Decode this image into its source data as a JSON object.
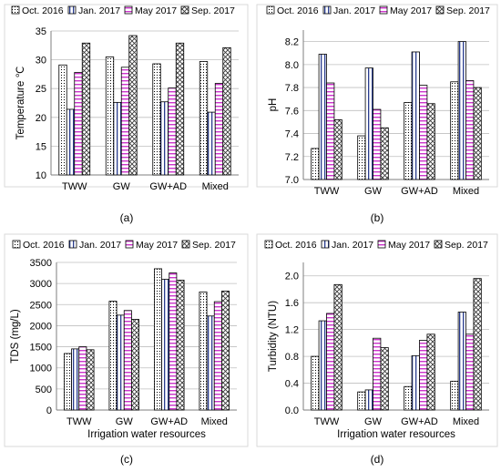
{
  "figure": {
    "panel_labels": [
      "(a)",
      "(b)",
      "(c)",
      "(d)"
    ]
  },
  "colors": {
    "panel_border": "#d9d9d9",
    "bar_stroke": "#000000",
    "grid": "#bfbfbf",
    "axis": "#7f7f7f"
  },
  "legend_entries": [
    "Oct. 2016",
    "Jan. 2017",
    "May 2017",
    "Sep. 2017"
  ],
  "chart_data": [
    {
      "type": "bar",
      "categories": [
        "TWW",
        "GW",
        "GW+AD",
        "Mixed"
      ],
      "series": [
        {
          "name": "Oct. 2016",
          "values": [
            29.1,
            30.5,
            29.3,
            29.7
          ],
          "pattern": "dots"
        },
        {
          "name": "Jan. 2017",
          "values": [
            21.4,
            22.6,
            22.7,
            20.9
          ],
          "pattern": "vlines"
        },
        {
          "name": "May 2017",
          "values": [
            27.8,
            28.7,
            25.1,
            25.9
          ],
          "pattern": "hlines"
        },
        {
          "name": "Sep. 2017",
          "values": [
            32.9,
            34.2,
            32.9,
            32.1
          ],
          "pattern": "cross"
        }
      ],
      "ylabel": "Temperature ℃",
      "xlabel": "",
      "ylim": [
        10,
        35
      ],
      "yticks": [
        10,
        15,
        20,
        25,
        30,
        35
      ],
      "tick_decimals": 0,
      "grid": true,
      "legend_position": "top"
    },
    {
      "type": "bar",
      "categories": [
        "TWW",
        "GW",
        "GW+AD",
        "Mixed"
      ],
      "series": [
        {
          "name": "Oct. 2016",
          "values": [
            7.27,
            7.38,
            7.67,
            7.85
          ],
          "pattern": "dots"
        },
        {
          "name": "Jan. 2017",
          "values": [
            8.09,
            7.97,
            8.11,
            8.2
          ],
          "pattern": "vlines"
        },
        {
          "name": "May 2017",
          "values": [
            7.84,
            7.61,
            7.82,
            7.86
          ],
          "pattern": "hlines"
        },
        {
          "name": "Sep. 2017",
          "values": [
            7.52,
            7.45,
            7.66,
            7.8
          ],
          "pattern": "cross"
        }
      ],
      "ylabel": "pH",
      "xlabel": "",
      "ylim": [
        7.0,
        8.3
      ],
      "yticks": [
        7.0,
        7.2,
        7.4,
        7.6,
        7.8,
        8.0,
        8.2
      ],
      "tick_decimals": 1,
      "grid": true,
      "legend_position": "top"
    },
    {
      "type": "bar",
      "categories": [
        "TWW",
        "GW",
        "GW+AD",
        "Mixed"
      ],
      "series": [
        {
          "name": "Oct. 2016",
          "values": [
            1340,
            2580,
            3350,
            2800
          ],
          "pattern": "dots"
        },
        {
          "name": "Jan. 2017",
          "values": [
            1450,
            2250,
            3100,
            2230
          ],
          "pattern": "vlines"
        },
        {
          "name": "May 2017",
          "values": [
            1500,
            2360,
            3250,
            2570
          ],
          "pattern": "hlines"
        },
        {
          "name": "Sep. 2017",
          "values": [
            1430,
            2150,
            3080,
            2820
          ],
          "pattern": "cross"
        }
      ],
      "ylabel": "TDS (mg/L)",
      "xlabel": "Irrigation water resources",
      "ylim": [
        0,
        3500
      ],
      "yticks": [
        0,
        500,
        1000,
        1500,
        2000,
        2500,
        3000,
        3500
      ],
      "tick_decimals": 0,
      "grid": true,
      "legend_position": "top"
    },
    {
      "type": "bar",
      "categories": [
        "TWW",
        "GW",
        "GW+AD",
        "Mixed"
      ],
      "series": [
        {
          "name": "Oct. 2016",
          "values": [
            0.8,
            0.27,
            0.35,
            0.43
          ],
          "pattern": "dots"
        },
        {
          "name": "Jan. 2017",
          "values": [
            1.33,
            0.3,
            0.81,
            1.46
          ],
          "pattern": "vlines"
        },
        {
          "name": "May 2017",
          "values": [
            1.44,
            1.07,
            1.04,
            1.13
          ],
          "pattern": "hlines"
        },
        {
          "name": "Sep. 2017",
          "values": [
            1.87,
            0.93,
            1.13,
            1.96
          ],
          "pattern": "cross"
        }
      ],
      "ylabel": "Turbidity (NTU)",
      "xlabel": "Irrigation water resources",
      "ylim": [
        0,
        2.2
      ],
      "yticks": [
        0.0,
        0.4,
        0.8,
        1.2,
        1.6,
        2.0
      ],
      "tick_decimals": 1,
      "grid": true,
      "legend_position": "top"
    }
  ]
}
